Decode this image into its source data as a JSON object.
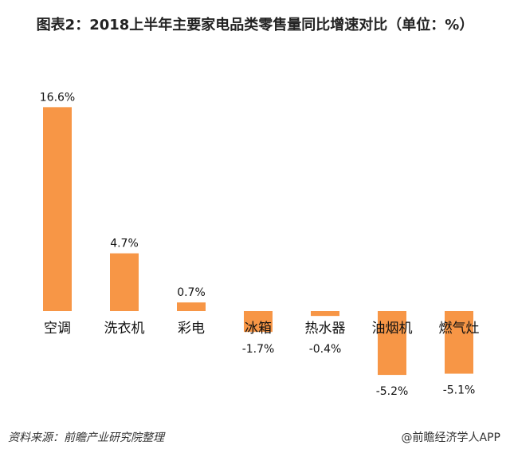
{
  "chart_data": {
    "type": "bar",
    "title": "图表2：2018上半年主要家电品类零售量同比增速对比（单位：%）",
    "categories": [
      "空调",
      "洗衣机",
      "彩电",
      "冰箱",
      "热水器",
      "油烟机",
      "燃气灶"
    ],
    "values": [
      16.6,
      4.7,
      0.7,
      -1.7,
      -0.4,
      -5.2,
      -5.1
    ],
    "value_labels": [
      "16.6%",
      "4.7%",
      "0.7%",
      "-1.7%",
      "-0.4%",
      "-5.2%",
      "-5.1%"
    ],
    "ylim": [
      -5.2,
      16.6
    ],
    "grid": false,
    "bar_color": "#F79646"
  },
  "footer": {
    "source": "资料来源：前瞻产业研究院整理",
    "credit": "@前瞻经济学人APP"
  }
}
